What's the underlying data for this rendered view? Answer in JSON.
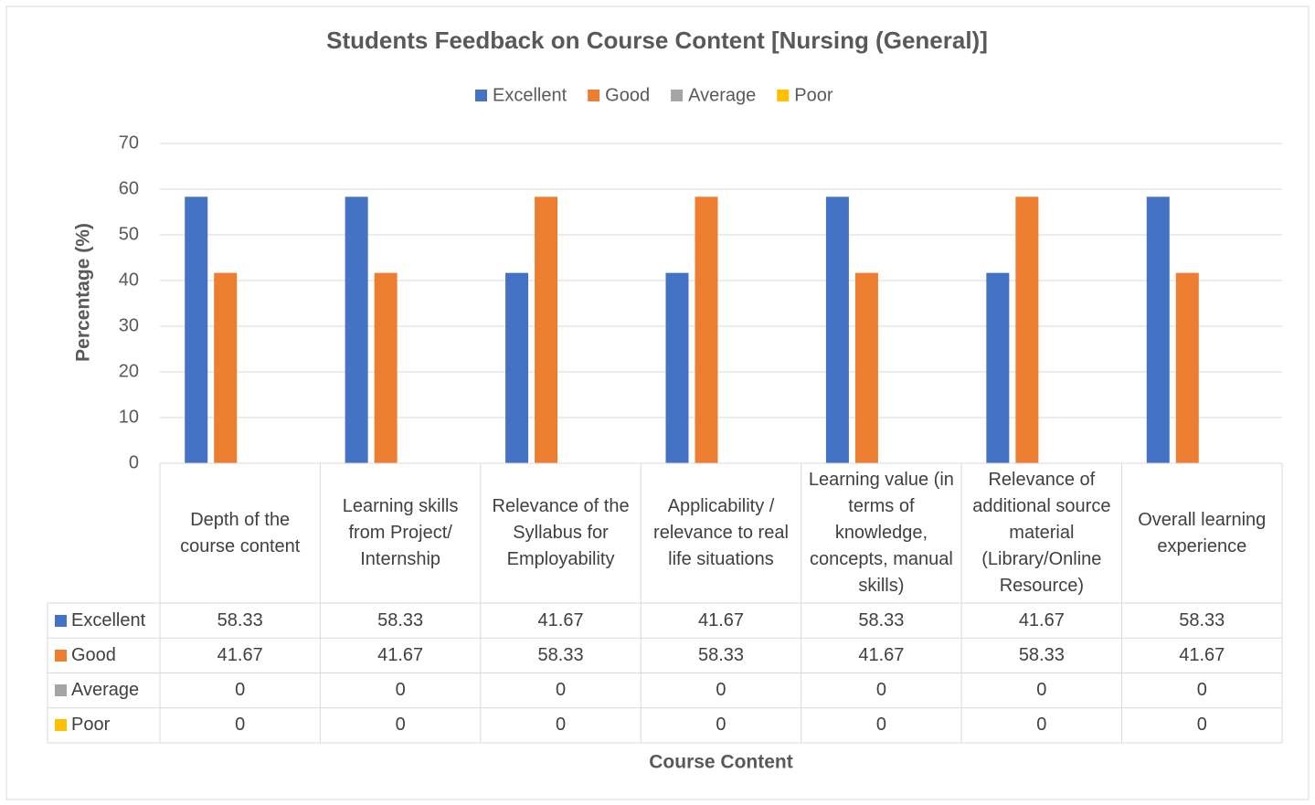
{
  "chart_data": {
    "type": "bar",
    "title": "Students Feedback on Course Content [Nursing (General)]",
    "x_label": "Course Content",
    "y_label": "Percentage (%)",
    "categories": [
      "Depth of the course content",
      "Learning skills from Project/ Internship",
      "Relevance of the Syllabus for Employability",
      "Applicability / relevance to real life situations",
      "Learning value (in terms of knowledge, concepts, manual skills)",
      "Relevance of additional source material (Library/Online Resource)",
      "Overall learning experience"
    ],
    "series": [
      {
        "name": "Excellent",
        "color": "#4472c4",
        "values": [
          58.33,
          58.33,
          41.67,
          41.67,
          58.33,
          41.67,
          58.33
        ]
      },
      {
        "name": "Good",
        "color": "#ed7d31",
        "values": [
          41.67,
          41.67,
          58.33,
          58.33,
          41.67,
          58.33,
          41.67
        ]
      },
      {
        "name": "Average",
        "color": "#a5a5a5",
        "values": [
          0,
          0,
          0,
          0,
          0,
          0,
          0
        ]
      },
      {
        "name": "Poor",
        "color": "#ffc000",
        "values": [
          0,
          0,
          0,
          0,
          0,
          0,
          0
        ]
      }
    ],
    "ylim": [
      0,
      70
    ],
    "yticks": [
      0,
      10,
      20,
      30,
      40,
      50,
      60,
      70
    ],
    "grid": true,
    "legend": "top",
    "data_table": true
  }
}
